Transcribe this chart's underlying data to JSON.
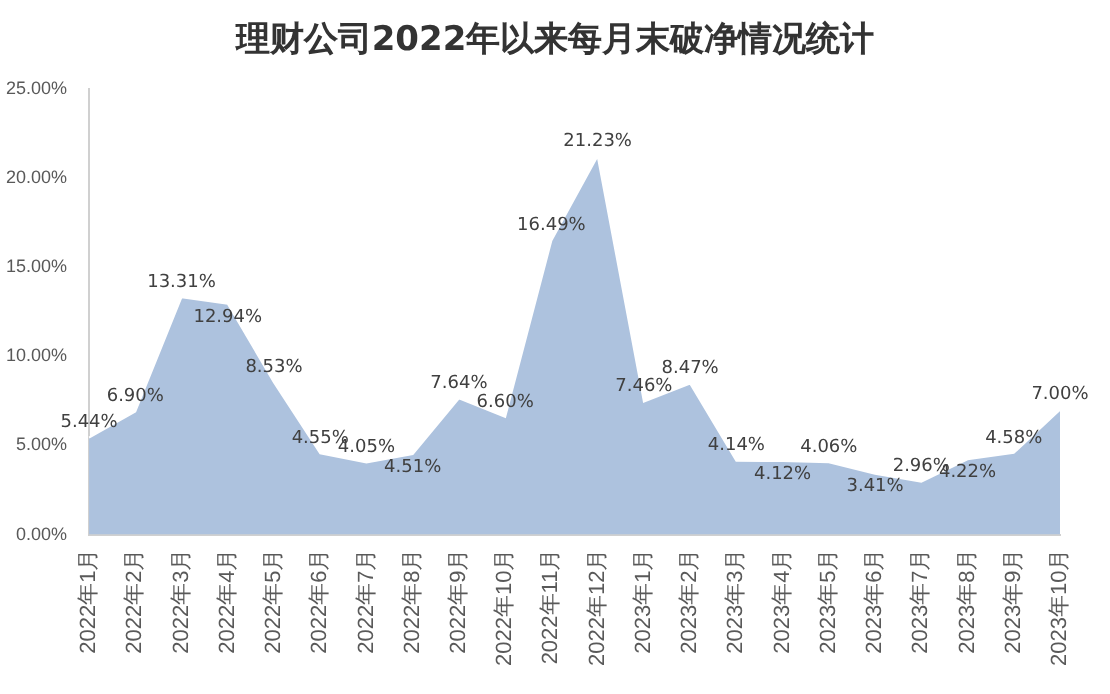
{
  "chart_data": {
    "type": "area",
    "title": "理财公司2022年以来每月末破净情况统计",
    "categories": [
      "2022年1月",
      "2022年2月",
      "2022年3月",
      "2022年4月",
      "2022年5月",
      "2022年6月",
      "2022年7月",
      "2022年8月",
      "2022年9月",
      "2022年10月",
      "2022年11月",
      "2022年12月",
      "2023年1月",
      "2023年2月",
      "2023年3月",
      "2023年4月",
      "2023年5月",
      "2023年6月",
      "2023年7月",
      "2023年8月",
      "2023年9月",
      "2023年10月"
    ],
    "series": [
      {
        "color": "#adc2de",
        "values": [
          5.44,
          6.9,
          13.31,
          12.94,
          8.53,
          4.55,
          4.05,
          4.51,
          7.64,
          6.6,
          16.49,
          21.23,
          7.46,
          8.47,
          4.14,
          4.12,
          4.06,
          3.41,
          2.96,
          4.22,
          4.58,
          7.0
        ]
      }
    ],
    "value_labels": [
      "5.44%",
      "6.90%",
      "13.31%",
      "12.94%",
      "8.53%",
      "4.55%",
      "4.05%",
      "4.51%",
      "7.64%",
      "6.60%",
      "16.49%",
      "21.23%",
      "7.46%",
      "8.47%",
      "4.14%",
      "4.12%",
      "4.06%",
      "3.41%",
      "2.96%",
      "4.22%",
      "4.58%",
      "7.00%"
    ],
    "ylim": [
      0,
      25
    ],
    "yticks": [
      {
        "value": 0,
        "label": "0.00%"
      },
      {
        "value": 5,
        "label": "5.00%"
      },
      {
        "value": 10,
        "label": "10.00%"
      },
      {
        "value": 15,
        "label": "15.00%"
      },
      {
        "value": 20,
        "label": "20.00%"
      },
      {
        "value": 25,
        "label": "25.00%"
      }
    ],
    "grid": false,
    "legend": false
  }
}
